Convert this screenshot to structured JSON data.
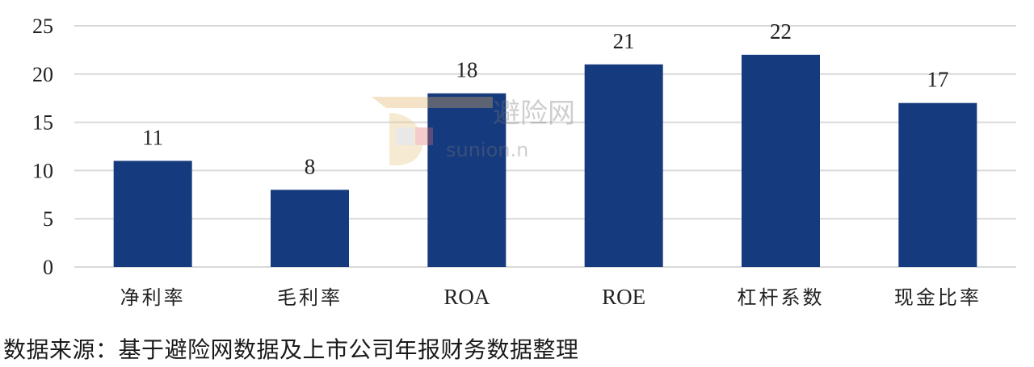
{
  "chart_data": {
    "type": "bar",
    "categories": [
      "净利率",
      "毛利率",
      "ROA",
      "ROE",
      "杠杆系数",
      "现金比率"
    ],
    "values": [
      11,
      8,
      18,
      21,
      22,
      17
    ],
    "ylim": [
      0,
      25
    ],
    "yticks": [
      0,
      5,
      10,
      15,
      20,
      25
    ],
    "grid": true,
    "bar_color": "#163a7e",
    "grid_color": "#d9d9d9"
  },
  "source_text": "数据来源：基于避险网数据及上市公司年报财务数据整理",
  "watermark": {
    "logo_text": "避险网",
    "url_text": "sunion.n"
  }
}
